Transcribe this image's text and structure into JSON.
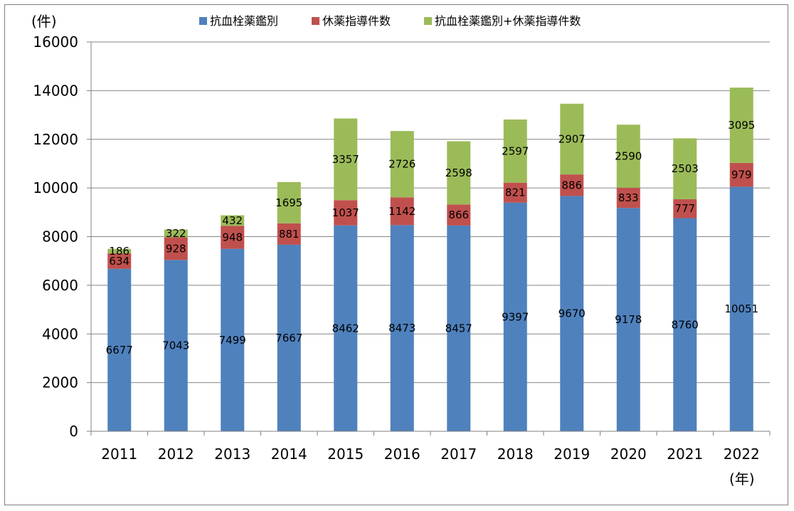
{
  "chart_data": {
    "type": "bar",
    "stacked": true,
    "categories": [
      "2011",
      "2012",
      "2013",
      "2014",
      "2015",
      "2016",
      "2017",
      "2018",
      "2019",
      "2020",
      "2021",
      "2022"
    ],
    "series": [
      {
        "name": "抗血栓薬鑑別",
        "color": "#4f81bd",
        "values": [
          6677,
          7043,
          7499,
          7667,
          8462,
          8473,
          8457,
          9397,
          9670,
          9178,
          8760,
          10051
        ]
      },
      {
        "name": "休薬指導件数",
        "color": "#c0504d",
        "values": [
          634,
          928,
          948,
          881,
          1037,
          1142,
          866,
          821,
          886,
          833,
          777,
          979
        ]
      },
      {
        "name": "抗血栓薬鑑別+休薬指導件数",
        "color": "#9bbb59",
        "values": [
          186,
          322,
          432,
          1695,
          3357,
          2726,
          2598,
          2597,
          2907,
          2590,
          2503,
          3095
        ]
      }
    ],
    "ylim": [
      0,
      16000
    ],
    "yticks": [
      0,
      2000,
      4000,
      6000,
      8000,
      10000,
      12000,
      14000,
      16000
    ],
    "y_unit": "(件)",
    "x_unit": "(年)",
    "grid": true,
    "legend_position": "top"
  }
}
